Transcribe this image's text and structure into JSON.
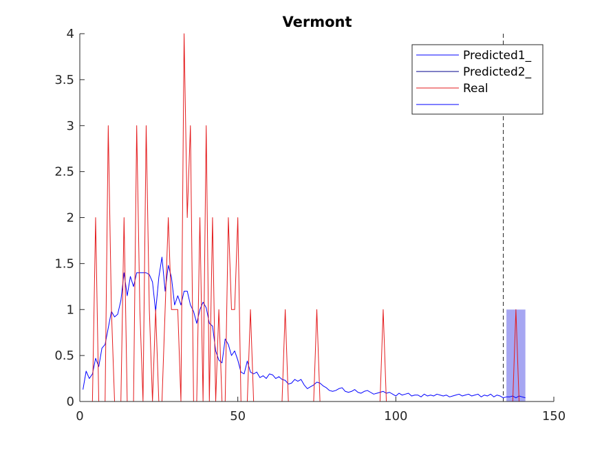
{
  "chart_data": {
    "type": "line",
    "title": "Vermont",
    "xlabel": "",
    "ylabel": "",
    "xlim": [
      0,
      150
    ],
    "ylim": [
      0,
      4
    ],
    "xticks": [
      0,
      50,
      100,
      150
    ],
    "xtick_labels": [
      "0",
      "50",
      "100",
      "150"
    ],
    "yticks": [
      0,
      0.5,
      1,
      1.5,
      2,
      2.5,
      3,
      3.5,
      4
    ],
    "ytick_labels": [
      "0",
      "0.5",
      "1",
      "1.5",
      "2",
      "2.5",
      "3",
      "3.5",
      "4"
    ],
    "grid": false,
    "legend_placement": "top-right",
    "legend": [
      "Predicted1_",
      "Predicted2_",
      "Real",
      ""
    ],
    "vline_x": 134,
    "shaded_region": {
      "x": [
        135,
        141
      ],
      "y": [
        0,
        1
      ],
      "color": "#a6a6f2"
    },
    "series": [
      {
        "name": "Predicted1_",
        "color": "#0000ff",
        "x": [
          1,
          2,
          3,
          4,
          5,
          6,
          7,
          8,
          9,
          10,
          11,
          12,
          13,
          14,
          15,
          16,
          17,
          18,
          19,
          20,
          21,
          22,
          23,
          24,
          25,
          26,
          27,
          28,
          29,
          30,
          31,
          32,
          33,
          34,
          35,
          36,
          37,
          38,
          39,
          40,
          41,
          42,
          43,
          44,
          45,
          46,
          47,
          48,
          49,
          50,
          51,
          52,
          53,
          54,
          55,
          56,
          57,
          58,
          59,
          60,
          61,
          62,
          63,
          64,
          65,
          66,
          67,
          68,
          69,
          70,
          71,
          72,
          73,
          74,
          75,
          76,
          77,
          78,
          79,
          80,
          81,
          82,
          83,
          84,
          85,
          86,
          87,
          88,
          89,
          90,
          91,
          92,
          93,
          94,
          95,
          96,
          97,
          98,
          99,
          100,
          101,
          102,
          103,
          104,
          105,
          106,
          107,
          108,
          109,
          110,
          111,
          112,
          113,
          114,
          115,
          116,
          117,
          118,
          119,
          120,
          121,
          122,
          123,
          124,
          125,
          126,
          127,
          128,
          129,
          130,
          131,
          132,
          133,
          134,
          135,
          136,
          137,
          138,
          139,
          140,
          141
        ],
        "values": [
          0.13,
          0.33,
          0.25,
          0.3,
          0.47,
          0.38,
          0.58,
          0.62,
          0.8,
          0.98,
          0.92,
          0.95,
          1.1,
          1.4,
          1.15,
          1.36,
          1.25,
          1.4,
          1.4,
          1.4,
          1.4,
          1.38,
          1.3,
          0.98,
          1.35,
          1.57,
          1.2,
          1.48,
          1.35,
          1.05,
          1.15,
          1.05,
          1.2,
          1.2,
          1.05,
          0.98,
          0.85,
          1.0,
          1.08,
          1.02,
          0.85,
          0.82,
          0.55,
          0.45,
          0.42,
          0.68,
          0.62,
          0.5,
          0.55,
          0.45,
          0.32,
          0.3,
          0.44,
          0.32,
          0.3,
          0.32,
          0.26,
          0.28,
          0.25,
          0.3,
          0.29,
          0.25,
          0.27,
          0.24,
          0.23,
          0.19,
          0.2,
          0.24,
          0.22,
          0.24,
          0.18,
          0.14,
          0.16,
          0.18,
          0.21,
          0.2,
          0.17,
          0.15,
          0.12,
          0.11,
          0.12,
          0.14,
          0.15,
          0.11,
          0.1,
          0.11,
          0.13,
          0.1,
          0.09,
          0.11,
          0.12,
          0.1,
          0.08,
          0.09,
          0.1,
          0.11,
          0.09,
          0.1,
          0.08,
          0.06,
          0.09,
          0.07,
          0.08,
          0.09,
          0.06,
          0.07,
          0.07,
          0.05,
          0.08,
          0.06,
          0.07,
          0.06,
          0.08,
          0.07,
          0.06,
          0.07,
          0.05,
          0.06,
          0.07,
          0.08,
          0.06,
          0.07,
          0.08,
          0.06,
          0.07,
          0.08,
          0.05,
          0.07,
          0.06,
          0.08,
          0.05,
          0.07,
          0.06,
          0.04,
          0.05,
          0.05,
          0.06,
          0.04,
          0.06,
          0.05,
          0.04
        ]
      },
      {
        "name": "Predicted2_",
        "color": "#00008b",
        "x": [],
        "values": []
      },
      {
        "name": "Real",
        "color": "#e41a1c",
        "x": [
          1,
          2,
          3,
          4,
          5,
          6,
          7,
          8,
          9,
          10,
          11,
          12,
          13,
          14,
          15,
          16,
          17,
          18,
          19,
          20,
          21,
          22,
          23,
          24,
          25,
          26,
          27,
          28,
          29,
          30,
          31,
          32,
          33,
          34,
          35,
          36,
          37,
          38,
          39,
          40,
          41,
          42,
          43,
          44,
          45,
          46,
          47,
          48,
          49,
          50,
          51,
          52,
          53,
          54,
          55,
          56,
          57,
          58,
          59,
          60,
          61,
          62,
          63,
          64,
          65,
          66,
          67,
          68,
          69,
          70,
          71,
          72,
          73,
          74,
          75,
          76,
          77,
          78,
          79,
          80,
          81,
          82,
          83,
          84,
          85,
          86,
          87,
          88,
          89,
          90,
          91,
          92,
          93,
          94,
          95,
          96,
          97,
          98,
          99,
          100,
          101,
          102,
          103,
          104,
          105,
          106,
          107,
          108,
          109,
          110,
          111,
          112,
          113,
          114,
          115,
          116,
          117,
          118,
          119,
          120,
          121,
          122,
          123,
          124,
          125,
          126,
          127,
          128,
          129,
          130,
          131,
          132,
          133,
          134,
          135,
          136,
          137,
          138,
          139,
          140,
          141
        ],
        "values": [
          0,
          0,
          0,
          0,
          2,
          0,
          0,
          0,
          3,
          1,
          0,
          0,
          0,
          2,
          0,
          0,
          0,
          3,
          1,
          0,
          3,
          1,
          0,
          1,
          0,
          0,
          1,
          2,
          1,
          1,
          1,
          0,
          4,
          2,
          3,
          0,
          0,
          2,
          0,
          3,
          0,
          2,
          0,
          1,
          0,
          0,
          2,
          1,
          1,
          2,
          0,
          0,
          0,
          1,
          0,
          0,
          0,
          0,
          0,
          0,
          0,
          0,
          0,
          0,
          1,
          0,
          0,
          0,
          0,
          0,
          0,
          0,
          0,
          0,
          1,
          0,
          0,
          0,
          0,
          0,
          0,
          0,
          0,
          0,
          0,
          0,
          0,
          0,
          0,
          0,
          0,
          0,
          0,
          0,
          0,
          1,
          0,
          0,
          0,
          0,
          0,
          0,
          0,
          0,
          0,
          0,
          0,
          0,
          0,
          0,
          0,
          0,
          0,
          0,
          0,
          0,
          0,
          0,
          0,
          0,
          0,
          0,
          0,
          0,
          0,
          0,
          0,
          0,
          0,
          0,
          0,
          0,
          0,
          0,
          0,
          0,
          0,
          1,
          0,
          0,
          0
        ]
      },
      {
        "name": "",
        "color": "#0000ff",
        "x": [],
        "values": []
      }
    ]
  }
}
